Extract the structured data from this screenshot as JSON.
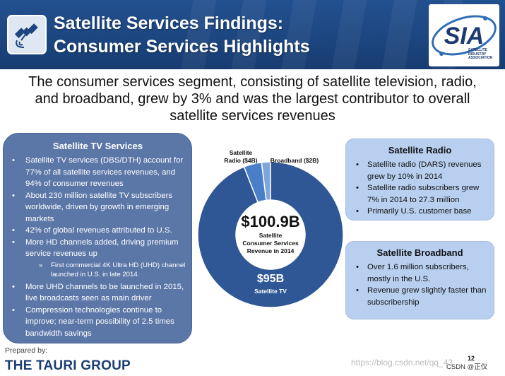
{
  "header": {
    "title_line1": "Satellite Services Findings:",
    "title_line2": "Consumer Services Highlights",
    "icon": "satellite-icon",
    "logo_text": "SIA",
    "logo_sub_line1": "SATELLITE",
    "logo_sub_line2": "INDUSTRY",
    "logo_sub_line3": "ASSOCIATION",
    "colors": {
      "header_blue": "#1c4680",
      "logo_blue": "#1c3a70",
      "logo_accent": "#2f6db5"
    }
  },
  "headline": {
    "line1": "The consumer services segment, consisting of satellite television, radio,",
    "line2": "and broadband, grew by 3% and was the largest contributor to overall",
    "line3": "satellite services revenues"
  },
  "tv_panel": {
    "title": "Satellite TV Services",
    "bullets": [
      "Satellite TV services (DBS/DTH) account for 77% of all satellite services revenues, and 94% of consumer revenues",
      "About 230 million satellite TV subscribers worldwide, driven by growth in emerging markets",
      "42% of global revenues attributed to U.S.",
      "More HD channels added, driving premium service revenues up",
      "More UHD channels to be launched in 2015, live broadcasts seen as main driver",
      "Compression technologies continue to improve; near-term possibility of 2.5 times bandwidth savings"
    ],
    "sub_bullet": "First commercial 4K Ultra HD (UHD) channel launched in U.S. in late 2014"
  },
  "chart_data": {
    "type": "pie",
    "title": "$100.9B",
    "center_label_line1": "Satellite",
    "center_label_line2": "Consumer Services",
    "center_label_line3": "Revenue in 2014",
    "total": 100.9,
    "slices": [
      {
        "name": "Satellite TV",
        "value": 95,
        "value_label": "$95B",
        "color": "#2f5796"
      },
      {
        "name": "Satellite Radio",
        "value": 4,
        "label_line1": "Satellite",
        "label_line2": "Radio ($4B)",
        "color": "#4a7ec8"
      },
      {
        "name": "Broadband",
        "value": 2,
        "label": "Broadband ($2B)",
        "color": "#7fa6dc"
      }
    ]
  },
  "radio_panel": {
    "title": "Satellite Radio",
    "bullets": [
      "Satellite radio (DARS) revenues grew by 10% in 2014",
      "Satellite radio subscribers grew 7% in 2014 to 27.3 million",
      "Primarily U.S. customer base"
    ]
  },
  "broadband_panel": {
    "title": "Satellite Broadband",
    "bullets": [
      "Over 1.6 million subscribers, mostly in the U.S.",
      "Revenue grew slightly faster than subscribership"
    ]
  },
  "footer": {
    "prepared_by": "Prepared by:",
    "brand": "THE TAURI GROUP",
    "page_number": "12",
    "watermark": "https://blog.csdn.net/qq_43",
    "csdn_tag": "CSDN @正仪"
  }
}
